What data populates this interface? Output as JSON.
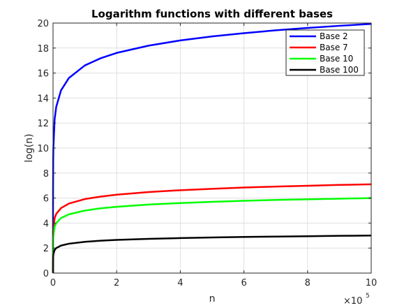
{
  "chart_data": {
    "type": "line",
    "title": "Logarithm functions with different bases",
    "xlabel": "n",
    "ylabel": "log(n)",
    "x_multiplier": {
      "base": "×10",
      "exponent": "5"
    },
    "xlim": [
      0,
      10
    ],
    "ylim": [
      0,
      20
    ],
    "xticks": [
      "0",
      "2",
      "4",
      "6",
      "8",
      "10"
    ],
    "yticks": [
      "0",
      "2",
      "4",
      "6",
      "8",
      "10",
      "12",
      "14",
      "16",
      "18",
      "20"
    ],
    "grid": true,
    "legend_position": "top-right",
    "x": [
      1e-05,
      5e-05,
      0.0001,
      0.0005,
      0.001,
      0.005,
      0.01,
      0.05,
      0.1,
      0.25,
      0.5,
      1,
      1.5,
      2,
      3,
      4,
      5,
      6,
      7,
      8,
      9,
      10
    ],
    "series": [
      {
        "name": "Base 2",
        "color": "#0000ff",
        "values": [
          0,
          2.32,
          3.32,
          5.64,
          6.64,
          8.97,
          9.97,
          12.29,
          13.29,
          14.61,
          15.61,
          16.61,
          17.19,
          17.61,
          18.19,
          18.61,
          18.93,
          19.19,
          19.42,
          19.61,
          19.78,
          19.93
        ]
      },
      {
        "name": "Base 7",
        "color": "#ff0000",
        "values": [
          0,
          0.83,
          1.18,
          2.01,
          2.37,
          3.19,
          3.55,
          4.38,
          4.73,
          5.2,
          5.56,
          5.92,
          6.12,
          6.27,
          6.48,
          6.63,
          6.74,
          6.84,
          6.92,
          6.98,
          7.05,
          7.1
        ]
      },
      {
        "name": "Base 10",
        "color": "#00ff00",
        "values": [
          0,
          0.7,
          1,
          1.7,
          2,
          2.7,
          3,
          3.7,
          4,
          4.4,
          4.7,
          5,
          5.18,
          5.3,
          5.48,
          5.6,
          5.7,
          5.78,
          5.85,
          5.9,
          5.95,
          6
        ]
      },
      {
        "name": "Base 100",
        "color": "#000000",
        "values": [
          0,
          0.35,
          0.5,
          0.85,
          1,
          1.35,
          1.5,
          1.85,
          2,
          2.2,
          2.35,
          2.5,
          2.59,
          2.65,
          2.74,
          2.8,
          2.85,
          2.89,
          2.92,
          2.95,
          2.98,
          3
        ]
      }
    ]
  }
}
